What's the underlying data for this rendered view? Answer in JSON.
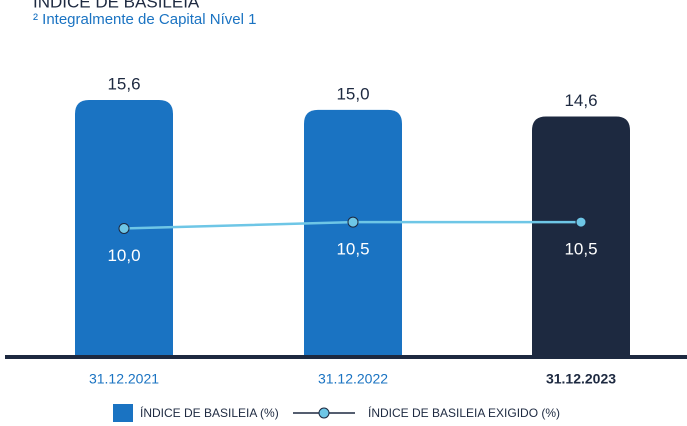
{
  "chart_data": {
    "type": "bar",
    "title": "ÍNDICE DE BASILEIA",
    "subtitle": "² Integralmente de Capital Nível 1",
    "categories": [
      "31.12.2021",
      "31.12.2022",
      "31.12.2023"
    ],
    "series": [
      {
        "name": "ÍNDICE DE BASILEIA (%)",
        "color": "#1a73c2",
        "colors": [
          "#1a73c2",
          "#1a73c2",
          "#1d2940"
        ],
        "values": [
          15.6,
          15.0,
          14.6
        ],
        "value_labels": [
          "15,6",
          "15,0",
          "14,6"
        ]
      },
      {
        "name": "ÍNDICE DE BASILEIA EXIGIDO (%)",
        "type": "line",
        "axis": "y2",
        "color": "#6ec6e6",
        "values": [
          10.0,
          10.5,
          10.5
        ],
        "value_labels": [
          "10,0",
          "10,5",
          "10,5"
        ]
      }
    ],
    "ylim": [
      0,
      15.6
    ],
    "y2lim": [
      0,
      20
    ]
  }
}
